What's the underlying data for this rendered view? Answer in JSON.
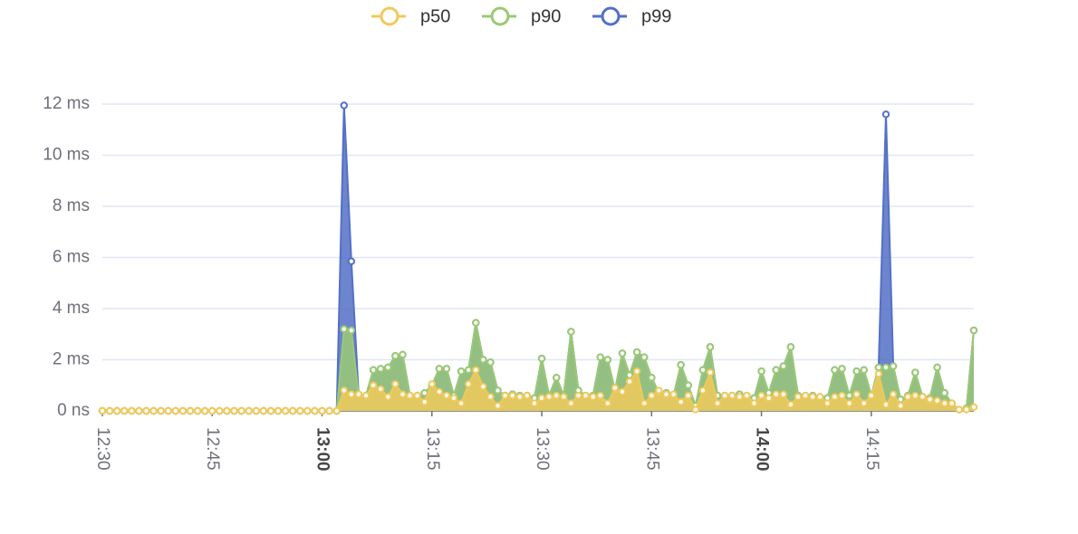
{
  "chart_data": {
    "type": "area_line",
    "x": [
      "12:30",
      "12:31",
      "12:32",
      "12:33",
      "12:34",
      "12:35",
      "12:36",
      "12:37",
      "12:38",
      "12:39",
      "12:40",
      "12:41",
      "12:42",
      "12:43",
      "12:44",
      "12:45",
      "12:46",
      "12:47",
      "12:48",
      "12:49",
      "12:50",
      "12:51",
      "12:52",
      "12:53",
      "12:54",
      "12:55",
      "12:56",
      "12:57",
      "12:58",
      "12:59",
      "13:00",
      "13:01",
      "13:02",
      "13:03",
      "13:04",
      "13:05",
      "13:06",
      "13:07",
      "13:08",
      "13:09",
      "13:10",
      "13:11",
      "13:12",
      "13:13",
      "13:14",
      "13:15",
      "13:16",
      "13:17",
      "13:18",
      "13:19",
      "13:20",
      "13:21",
      "13:22",
      "13:23",
      "13:24",
      "13:25",
      "13:26",
      "13:27",
      "13:28",
      "13:29",
      "13:30",
      "13:31",
      "13:32",
      "13:33",
      "13:34",
      "13:35",
      "13:36",
      "13:37",
      "13:38",
      "13:39",
      "13:40",
      "13:41",
      "13:42",
      "13:43",
      "13:44",
      "13:45",
      "13:46",
      "13:47",
      "13:48",
      "13:49",
      "13:50",
      "13:51",
      "13:52",
      "13:53",
      "13:54",
      "13:55",
      "13:56",
      "13:57",
      "13:58",
      "13:59",
      "14:00",
      "14:01",
      "14:02",
      "14:03",
      "14:04",
      "14:05",
      "14:06",
      "14:07",
      "14:08",
      "14:09",
      "14:10",
      "14:11",
      "14:12",
      "14:13",
      "14:14",
      "14:15",
      "14:16",
      "14:17",
      "14:18",
      "14:19",
      "14:20",
      "14:21",
      "14:22",
      "14:23",
      "14:24",
      "14:25",
      "14:26",
      "14:27",
      "14:28",
      "14:29"
    ],
    "xticks": [
      "12:30",
      "12:45",
      "13:00",
      "13:15",
      "13:30",
      "13:45",
      "14:00",
      "14:15"
    ],
    "ylim": [
      0,
      12
    ],
    "yticks": [
      {
        "value": 0,
        "label": "0 ns"
      },
      {
        "value": 2,
        "label": "2 ms"
      },
      {
        "value": 4,
        "label": "4 ms"
      },
      {
        "value": 6,
        "label": "6 ms"
      },
      {
        "value": 8,
        "label": "8 ms"
      },
      {
        "value": 10,
        "label": "10 ms"
      },
      {
        "value": 12,
        "label": "12 ms"
      }
    ],
    "grid": true,
    "legend": "top",
    "series": [
      {
        "name": "p50",
        "color": "#f0c95c",
        "values": [
          0,
          0,
          0,
          0,
          0,
          0,
          0,
          0,
          0,
          0,
          0,
          0,
          0,
          0,
          0,
          0,
          0,
          0,
          0,
          0,
          0,
          0,
          0,
          0,
          0,
          0,
          0,
          0,
          0,
          0,
          0,
          0,
          0,
          0.8,
          0.65,
          0.65,
          0.6,
          1.0,
          0.85,
          0.55,
          1.05,
          0.65,
          0.6,
          0.6,
          0.35,
          1.05,
          0.75,
          0.6,
          0.5,
          0.3,
          1.05,
          1.6,
          0.95,
          0.55,
          0.2,
          0.6,
          0.6,
          0.55,
          0.6,
          0.3,
          0.5,
          0.55,
          0.6,
          0.55,
          0.3,
          0.6,
          0.6,
          0.55,
          0.6,
          0.3,
          0.9,
          0.75,
          1.15,
          1.55,
          0.3,
          0.6,
          0.8,
          0.65,
          0.65,
          0.35,
          0.6,
          0.05,
          0.8,
          1.5,
          0.3,
          0.6,
          0.6,
          0.55,
          0.6,
          0.3,
          0.6,
          0.5,
          0.65,
          0.65,
          0.25,
          0.55,
          0.6,
          0.55,
          0.55,
          0.3,
          0.55,
          0.6,
          0.3,
          0.65,
          0.3,
          0.6,
          1.45,
          0.25,
          0.65,
          0.2,
          0.55,
          0.6,
          0.55,
          0.45,
          0.4,
          0.3,
          0.3,
          0.05,
          0.05,
          0.15
        ]
      },
      {
        "name": "p90",
        "color": "#9bc974",
        "values": [
          0,
          0,
          0,
          0,
          0,
          0,
          0,
          0,
          0,
          0,
          0,
          0,
          0,
          0,
          0,
          0,
          0,
          0,
          0,
          0,
          0,
          0,
          0,
          0,
          0,
          0,
          0,
          0,
          0,
          0,
          0,
          0,
          0,
          3.2,
          3.15,
          0.6,
          0.6,
          1.6,
          1.65,
          1.7,
          2.15,
          2.2,
          0.6,
          0.6,
          0.7,
          1.0,
          1.65,
          1.65,
          0.6,
          1.55,
          1.6,
          3.45,
          2.0,
          1.9,
          0.8,
          0.6,
          0.65,
          0.6,
          0.6,
          0.5,
          2.05,
          0.6,
          1.3,
          0.6,
          3.1,
          0.8,
          0.6,
          0.6,
          2.1,
          2.0,
          0.8,
          2.25,
          1.4,
          2.3,
          2.1,
          1.3,
          0.7,
          0.7,
          0.6,
          1.8,
          1.0,
          0.2,
          1.6,
          2.5,
          0.6,
          0.6,
          0.6,
          0.65,
          0.6,
          0.5,
          1.55,
          0.7,
          1.6,
          1.75,
          2.5,
          0.6,
          0.6,
          0.6,
          0.55,
          0.5,
          1.6,
          1.65,
          0.6,
          1.55,
          1.6,
          0.6,
          1.7,
          1.7,
          1.75,
          0.45,
          0.6,
          1.5,
          0.55,
          0.5,
          1.7,
          0.7,
          0.3,
          0.05,
          0.1,
          3.15
        ]
      },
      {
        "name": "p99",
        "color": "#5470c6",
        "values": [
          0,
          0,
          0,
          0,
          0,
          0,
          0,
          0,
          0,
          0,
          0,
          0,
          0,
          0,
          0,
          0,
          0,
          0,
          0,
          0,
          0,
          0,
          0,
          0,
          0,
          0,
          0,
          0,
          0,
          0,
          0,
          0,
          0,
          11.95,
          5.85,
          0.6,
          0.6,
          1.6,
          1.65,
          1.7,
          2.15,
          2.2,
          0.6,
          0.6,
          0.7,
          1.0,
          1.65,
          1.65,
          0.6,
          1.55,
          1.6,
          3.45,
          2.0,
          1.9,
          0.8,
          0.6,
          0.65,
          0.6,
          0.6,
          0.5,
          2.05,
          0.6,
          1.3,
          0.6,
          3.1,
          0.8,
          0.6,
          0.6,
          2.1,
          2.0,
          0.8,
          2.25,
          1.4,
          2.3,
          2.1,
          1.3,
          0.7,
          0.7,
          0.6,
          1.8,
          1.0,
          0.2,
          1.6,
          2.5,
          0.6,
          0.6,
          0.6,
          0.65,
          0.6,
          0.5,
          1.55,
          0.7,
          1.6,
          1.75,
          2.5,
          0.6,
          0.6,
          0.6,
          0.55,
          0.5,
          1.6,
          1.65,
          0.6,
          1.55,
          1.6,
          0.6,
          1.7,
          11.6,
          1.75,
          0.45,
          0.6,
          1.5,
          0.55,
          0.5,
          1.7,
          0.7,
          0.3,
          0.05,
          0.1,
          3.15
        ]
      }
    ]
  }
}
